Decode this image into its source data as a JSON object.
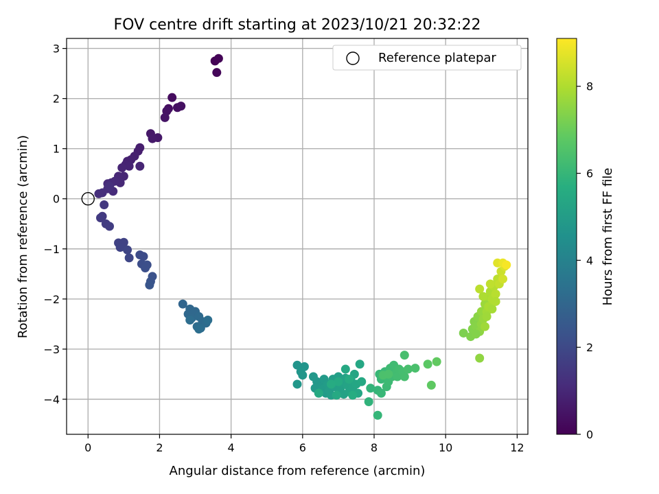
{
  "chart_data": {
    "type": "scatter",
    "title": "FOV centre drift starting at 2023/10/21 20:32:22",
    "xlabel": "Angular distance from reference (arcmin)",
    "ylabel": "Rotation from reference (arcmin)",
    "xlim": [
      -0.6,
      12.3
    ],
    "ylim": [
      -4.7,
      3.2
    ],
    "xticks": [
      0,
      2,
      4,
      6,
      8,
      10,
      12
    ],
    "yticks": [
      -4,
      -3,
      -2,
      -1,
      0,
      1,
      2,
      3
    ],
    "grid": true,
    "legend": {
      "placement": "top-right",
      "entries": [
        {
          "label": "Reference platepar",
          "marker": "open-circle"
        }
      ]
    },
    "reference_point": {
      "x": 0,
      "y": 0
    },
    "colorbar": {
      "label": "Hours from first FF file",
      "colormap": "viridis",
      "range": [
        0,
        9.1
      ],
      "ticks": [
        0,
        2,
        4,
        6,
        8
      ]
    },
    "points": [
      {
        "x": 3.55,
        "y": 2.75,
        "c": 0.05
      },
      {
        "x": 3.65,
        "y": 2.8,
        "c": 0.1
      },
      {
        "x": 3.6,
        "y": 2.52,
        "c": 0.15
      },
      {
        "x": 2.35,
        "y": 2.02,
        "c": 0.3
      },
      {
        "x": 2.25,
        "y": 1.8,
        "c": 0.35
      },
      {
        "x": 2.5,
        "y": 1.82,
        "c": 0.4
      },
      {
        "x": 2.6,
        "y": 1.85,
        "c": 0.42
      },
      {
        "x": 2.2,
        "y": 1.75,
        "c": 0.45
      },
      {
        "x": 2.15,
        "y": 1.62,
        "c": 0.5
      },
      {
        "x": 1.75,
        "y": 1.3,
        "c": 0.6
      },
      {
        "x": 1.95,
        "y": 1.22,
        "c": 0.62
      },
      {
        "x": 1.8,
        "y": 1.2,
        "c": 0.65
      },
      {
        "x": 1.45,
        "y": 1.02,
        "c": 0.75
      },
      {
        "x": 1.4,
        "y": 0.95,
        "c": 0.78
      },
      {
        "x": 1.3,
        "y": 0.85,
        "c": 0.82
      },
      {
        "x": 1.2,
        "y": 0.78,
        "c": 0.85
      },
      {
        "x": 1.1,
        "y": 0.75,
        "c": 0.88
      },
      {
        "x": 1.05,
        "y": 0.68,
        "c": 0.9
      },
      {
        "x": 1.15,
        "y": 0.65,
        "c": 0.92
      },
      {
        "x": 0.95,
        "y": 0.62,
        "c": 0.95
      },
      {
        "x": 1.45,
        "y": 0.65,
        "c": 0.97
      },
      {
        "x": 1.0,
        "y": 0.45,
        "c": 1.0
      },
      {
        "x": 0.85,
        "y": 0.45,
        "c": 1.02
      },
      {
        "x": 0.9,
        "y": 0.32,
        "c": 1.05
      },
      {
        "x": 0.75,
        "y": 0.35,
        "c": 1.08
      },
      {
        "x": 0.65,
        "y": 0.32,
        "c": 1.1
      },
      {
        "x": 0.55,
        "y": 0.3,
        "c": 1.12
      },
      {
        "x": 0.7,
        "y": 0.15,
        "c": 1.15
      },
      {
        "x": 0.55,
        "y": 0.2,
        "c": 1.18
      },
      {
        "x": 0.4,
        "y": 0.12,
        "c": 1.2
      },
      {
        "x": 0.3,
        "y": 0.1,
        "c": 1.22
      },
      {
        "x": 0.6,
        "y": 0.25,
        "c": 1.25
      },
      {
        "x": 0.45,
        "y": -0.12,
        "c": 1.5
      },
      {
        "x": 0.4,
        "y": -0.35,
        "c": 1.55
      },
      {
        "x": 0.35,
        "y": -0.38,
        "c": 1.58
      },
      {
        "x": 0.5,
        "y": -0.5,
        "c": 1.62
      },
      {
        "x": 0.6,
        "y": -0.55,
        "c": 1.65
      },
      {
        "x": 0.85,
        "y": -0.88,
        "c": 1.8
      },
      {
        "x": 1.0,
        "y": -0.87,
        "c": 1.82
      },
      {
        "x": 0.9,
        "y": -0.97,
        "c": 1.85
      },
      {
        "x": 1.1,
        "y": -1.02,
        "c": 1.9
      },
      {
        "x": 1.15,
        "y": -1.18,
        "c": 1.95
      },
      {
        "x": 1.45,
        "y": -1.12,
        "c": 2.1
      },
      {
        "x": 1.55,
        "y": -1.15,
        "c": 2.12
      },
      {
        "x": 1.5,
        "y": -1.3,
        "c": 2.15
      },
      {
        "x": 1.65,
        "y": -1.32,
        "c": 2.2
      },
      {
        "x": 1.6,
        "y": -1.38,
        "c": 2.22
      },
      {
        "x": 1.8,
        "y": -1.55,
        "c": 2.3
      },
      {
        "x": 1.75,
        "y": -1.65,
        "c": 2.35
      },
      {
        "x": 1.72,
        "y": -1.72,
        "c": 2.4
      },
      {
        "x": 2.65,
        "y": -2.1,
        "c": 3.0
      },
      {
        "x": 2.85,
        "y": -2.2,
        "c": 3.05
      },
      {
        "x": 2.8,
        "y": -2.3,
        "c": 3.08
      },
      {
        "x": 3.0,
        "y": -2.25,
        "c": 3.1
      },
      {
        "x": 2.9,
        "y": -2.38,
        "c": 3.12
      },
      {
        "x": 3.1,
        "y": -2.35,
        "c": 3.15
      },
      {
        "x": 3.2,
        "y": -2.45,
        "c": 3.18
      },
      {
        "x": 3.3,
        "y": -2.48,
        "c": 3.2
      },
      {
        "x": 3.05,
        "y": -2.55,
        "c": 3.22
      },
      {
        "x": 3.15,
        "y": -2.58,
        "c": 3.25
      },
      {
        "x": 2.85,
        "y": -2.42,
        "c": 3.28
      },
      {
        "x": 3.35,
        "y": -2.42,
        "c": 3.3
      },
      {
        "x": 3.1,
        "y": -2.6,
        "c": 3.32
      },
      {
        "x": 5.85,
        "y": -3.32,
        "c": 4.7
      },
      {
        "x": 6.05,
        "y": -3.35,
        "c": 4.75
      },
      {
        "x": 5.95,
        "y": -3.45,
        "c": 4.78
      },
      {
        "x": 6.0,
        "y": -3.52,
        "c": 4.8
      },
      {
        "x": 5.85,
        "y": -3.7,
        "c": 4.82
      },
      {
        "x": 6.3,
        "y": -3.55,
        "c": 4.85
      },
      {
        "x": 6.4,
        "y": -3.65,
        "c": 4.88
      },
      {
        "x": 6.35,
        "y": -3.78,
        "c": 4.9
      },
      {
        "x": 6.5,
        "y": -3.75,
        "c": 4.92
      },
      {
        "x": 6.6,
        "y": -3.6,
        "c": 4.95
      },
      {
        "x": 6.55,
        "y": -3.8,
        "c": 4.98
      },
      {
        "x": 6.65,
        "y": -3.88,
        "c": 5.0
      },
      {
        "x": 6.7,
        "y": -3.7,
        "c": 5.02
      },
      {
        "x": 6.75,
        "y": -3.82,
        "c": 5.05
      },
      {
        "x": 6.8,
        "y": -3.92,
        "c": 5.08
      },
      {
        "x": 6.85,
        "y": -3.6,
        "c": 5.1
      },
      {
        "x": 6.9,
        "y": -3.75,
        "c": 5.12
      },
      {
        "x": 7.0,
        "y": -3.55,
        "c": 5.15
      },
      {
        "x": 7.05,
        "y": -3.8,
        "c": 5.18
      },
      {
        "x": 7.1,
        "y": -3.68,
        "c": 5.2
      },
      {
        "x": 7.15,
        "y": -3.9,
        "c": 5.22
      },
      {
        "x": 7.2,
        "y": -3.58,
        "c": 5.25
      },
      {
        "x": 7.25,
        "y": -3.72,
        "c": 5.28
      },
      {
        "x": 7.3,
        "y": -3.85,
        "c": 5.3
      },
      {
        "x": 7.35,
        "y": -3.62,
        "c": 5.32
      },
      {
        "x": 7.4,
        "y": -3.78,
        "c": 5.35
      },
      {
        "x": 7.45,
        "y": -3.5,
        "c": 5.38
      },
      {
        "x": 7.5,
        "y": -3.7,
        "c": 5.4
      },
      {
        "x": 7.55,
        "y": -3.88,
        "c": 5.42
      },
      {
        "x": 7.6,
        "y": -3.3,
        "c": 5.45
      },
      {
        "x": 7.65,
        "y": -3.65,
        "c": 5.48
      },
      {
        "x": 7.2,
        "y": -3.4,
        "c": 5.5
      },
      {
        "x": 6.95,
        "y": -3.92,
        "c": 5.52
      },
      {
        "x": 6.45,
        "y": -3.88,
        "c": 5.55
      },
      {
        "x": 7.0,
        "y": -3.65,
        "c": 5.58
      },
      {
        "x": 6.8,
        "y": -3.7,
        "c": 5.6
      },
      {
        "x": 7.3,
        "y": -3.6,
        "c": 5.62
      },
      {
        "x": 7.4,
        "y": -3.92,
        "c": 5.65
      },
      {
        "x": 7.85,
        "y": -4.05,
        "c": 5.9
      },
      {
        "x": 7.9,
        "y": -3.78,
        "c": 5.95
      },
      {
        "x": 8.1,
        "y": -3.82,
        "c": 6.0
      },
      {
        "x": 8.1,
        "y": -4.32,
        "c": 6.02
      },
      {
        "x": 8.2,
        "y": -3.88,
        "c": 6.05
      },
      {
        "x": 8.15,
        "y": -3.5,
        "c": 6.08
      },
      {
        "x": 8.2,
        "y": -3.6,
        "c": 6.1
      },
      {
        "x": 8.3,
        "y": -3.45,
        "c": 6.12
      },
      {
        "x": 8.35,
        "y": -3.75,
        "c": 6.15
      },
      {
        "x": 8.4,
        "y": -3.65,
        "c": 6.18
      },
      {
        "x": 8.45,
        "y": -3.38,
        "c": 6.2
      },
      {
        "x": 8.5,
        "y": -3.55,
        "c": 6.22
      },
      {
        "x": 8.55,
        "y": -3.32,
        "c": 6.25
      },
      {
        "x": 8.6,
        "y": -3.48,
        "c": 6.28
      },
      {
        "x": 8.65,
        "y": -3.55,
        "c": 6.3
      },
      {
        "x": 8.7,
        "y": -3.4,
        "c": 6.32
      },
      {
        "x": 8.8,
        "y": -3.45,
        "c": 6.35
      },
      {
        "x": 8.85,
        "y": -3.55,
        "c": 6.38
      },
      {
        "x": 8.85,
        "y": -3.12,
        "c": 6.4
      },
      {
        "x": 8.95,
        "y": -3.4,
        "c": 6.42
      },
      {
        "x": 9.15,
        "y": -3.38,
        "c": 6.45
      },
      {
        "x": 8.25,
        "y": -3.52,
        "c": 6.48
      },
      {
        "x": 8.4,
        "y": -3.5,
        "c": 6.5
      },
      {
        "x": 9.5,
        "y": -3.3,
        "c": 6.8
      },
      {
        "x": 9.6,
        "y": -3.72,
        "c": 6.85
      },
      {
        "x": 9.75,
        "y": -3.25,
        "c": 6.9
      },
      {
        "x": 10.5,
        "y": -2.68,
        "c": 7.3
      },
      {
        "x": 10.7,
        "y": -2.75,
        "c": 7.35
      },
      {
        "x": 10.75,
        "y": -2.6,
        "c": 7.38
      },
      {
        "x": 10.8,
        "y": -2.45,
        "c": 7.42
      },
      {
        "x": 10.85,
        "y": -2.55,
        "c": 7.45
      },
      {
        "x": 10.9,
        "y": -2.35,
        "c": 7.5
      },
      {
        "x": 10.95,
        "y": -2.65,
        "c": 7.55
      },
      {
        "x": 10.95,
        "y": -3.18,
        "c": 7.58
      },
      {
        "x": 11.0,
        "y": -2.5,
        "c": 7.6
      },
      {
        "x": 11.0,
        "y": -2.25,
        "c": 7.65
      },
      {
        "x": 11.05,
        "y": -2.4,
        "c": 7.7
      },
      {
        "x": 11.1,
        "y": -2.1,
        "c": 7.75
      },
      {
        "x": 11.1,
        "y": -2.55,
        "c": 7.8
      },
      {
        "x": 11.15,
        "y": -2.25,
        "c": 7.85
      },
      {
        "x": 11.2,
        "y": -1.95,
        "c": 7.9
      },
      {
        "x": 11.2,
        "y": -2.15,
        "c": 7.95
      },
      {
        "x": 11.25,
        "y": -1.85,
        "c": 8.0
      },
      {
        "x": 11.3,
        "y": -2.0,
        "c": 8.05
      },
      {
        "x": 11.35,
        "y": -1.75,
        "c": 8.1
      },
      {
        "x": 11.4,
        "y": -1.9,
        "c": 8.15
      },
      {
        "x": 11.45,
        "y": -1.6,
        "c": 8.2
      },
      {
        "x": 11.5,
        "y": -1.7,
        "c": 8.3
      },
      {
        "x": 11.55,
        "y": -1.45,
        "c": 8.4
      },
      {
        "x": 11.6,
        "y": -1.6,
        "c": 8.5
      },
      {
        "x": 11.65,
        "y": -1.35,
        "c": 8.6
      },
      {
        "x": 11.45,
        "y": -1.28,
        "c": 8.7
      },
      {
        "x": 11.6,
        "y": -1.28,
        "c": 8.85
      },
      {
        "x": 11.7,
        "y": -1.32,
        "c": 9.0
      },
      {
        "x": 10.95,
        "y": -1.8,
        "c": 8.2
      },
      {
        "x": 11.05,
        "y": -1.95,
        "c": 8.0
      },
      {
        "x": 10.85,
        "y": -2.7,
        "c": 7.4
      },
      {
        "x": 11.15,
        "y": -2.35,
        "c": 7.8
      },
      {
        "x": 11.3,
        "y": -2.2,
        "c": 7.9
      },
      {
        "x": 11.4,
        "y": -2.05,
        "c": 8.05
      },
      {
        "x": 11.25,
        "y": -1.7,
        "c": 8.25
      }
    ]
  }
}
